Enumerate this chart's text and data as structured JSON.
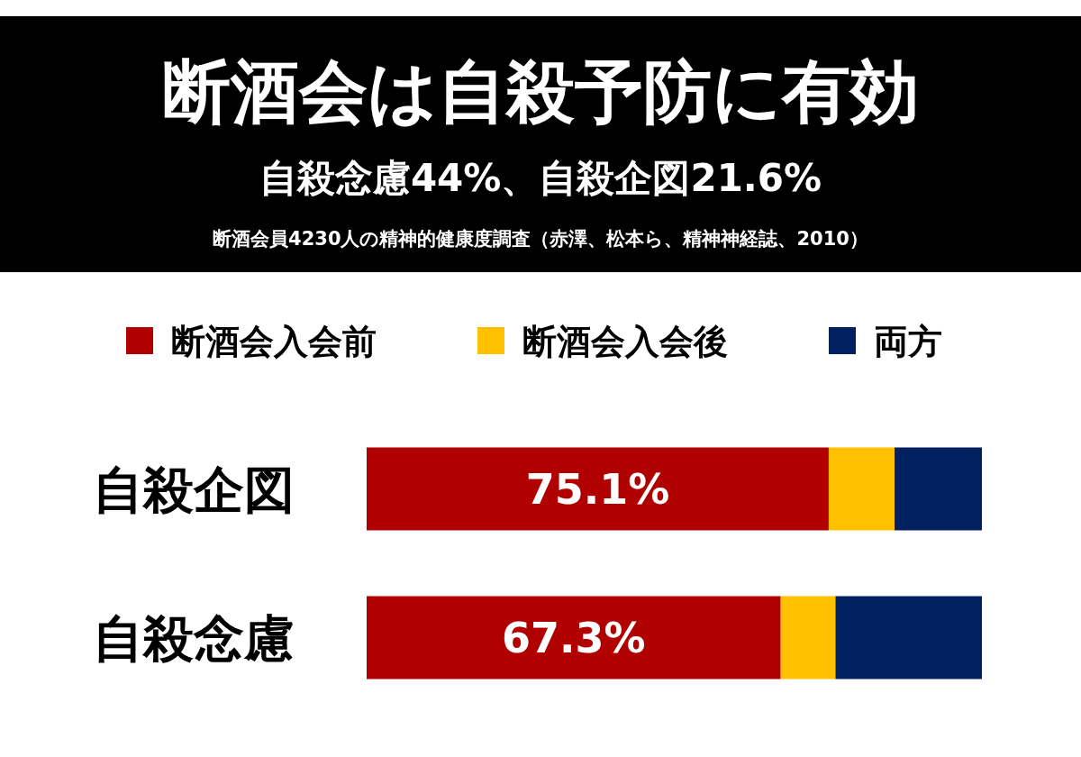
{
  "chart_data": {
    "type": "bar",
    "orientation": "horizontal",
    "stacked": true,
    "xlim": [
      0,
      100
    ],
    "title": "断酒会は自殺予防に有効",
    "subtitle": "自殺念慮44%、自殺企図21.6%",
    "annotations": [
      "断酒会員4230人の精神的健康度調査（赤澤、松本ら、精神神経誌、2010）"
    ],
    "categories": [
      "自殺企図",
      "自殺念慮"
    ],
    "legend": "top",
    "series": [
      {
        "name": "断酒会入会前",
        "color": "#b00000",
        "values": [
          75.1,
          67.3
        ],
        "value_labels": [
          "75.1%",
          "67.3%"
        ]
      },
      {
        "name": "断酒会入会後",
        "color": "#ffc000",
        "values": [
          10.7,
          8.9
        ],
        "value_labels": [
          null,
          null
        ]
      },
      {
        "name": "両方",
        "color": "#002060",
        "values": [
          14.2,
          23.8
        ],
        "value_labels": [
          null,
          null
        ]
      }
    ]
  }
}
